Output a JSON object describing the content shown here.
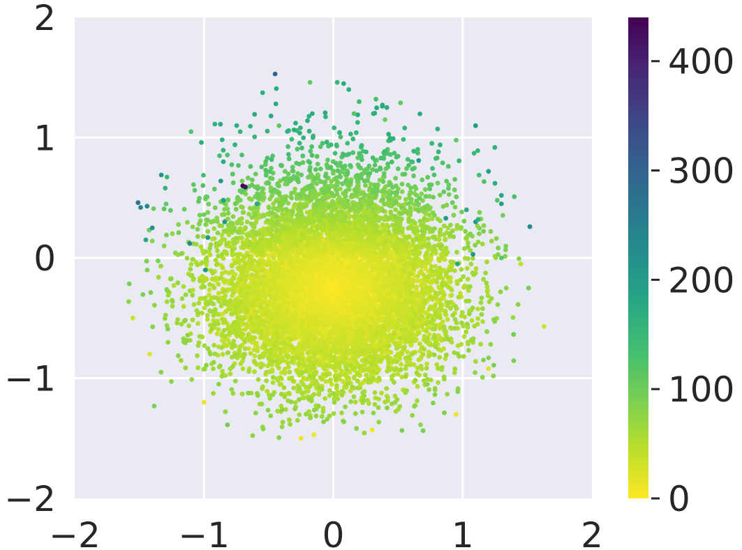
{
  "chart_data": {
    "type": "scatter",
    "title": "",
    "xlabel": "",
    "ylabel": "",
    "xlim": [
      -2,
      2
    ],
    "ylim": [
      -2,
      2
    ],
    "xticks": [
      -2,
      -1,
      0,
      1,
      2
    ],
    "yticks": [
      -2,
      -1,
      0,
      1,
      2
    ],
    "xtick_labels": [
      "−2",
      "−1",
      "0",
      "1",
      "2"
    ],
    "ytick_labels": [
      "−2",
      "−1",
      "0",
      "1",
      "2"
    ],
    "grid": true,
    "background": "#eaeaf2",
    "grid_color": "#ffffff",
    "colormap": "viridis_r",
    "colorbar": {
      "min": 0,
      "max": 440,
      "ticks": [
        0,
        100,
        200,
        300,
        400
      ],
      "tick_labels": [
        "0",
        "100",
        "200",
        "300",
        "400"
      ]
    },
    "cluster": {
      "description": "dense cloud of several thousand points, mostly low values",
      "center": [
        0.0,
        -0.25
      ],
      "spread_x": 0.45,
      "spread_y": 0.38,
      "point_count": 9000
    },
    "points": [
      {
        "x": -0.45,
        "y": 1.53,
        "value": 300
      },
      {
        "x": 0.08,
        "y": 1.45,
        "value": 170
      },
      {
        "x": 0.12,
        "y": 1.4,
        "value": 160
      },
      {
        "x": 0.03,
        "y": 1.46,
        "value": 150
      },
      {
        "x": -0.18,
        "y": 1.46,
        "value": 110
      },
      {
        "x": 0.2,
        "y": 1.3,
        "value": 140
      },
      {
        "x": 0.33,
        "y": 1.32,
        "value": 130
      },
      {
        "x": 0.52,
        "y": 1.29,
        "value": 110
      },
      {
        "x": 0.31,
        "y": 1.2,
        "value": 160
      },
      {
        "x": 1.1,
        "y": 1.1,
        "value": 200
      },
      {
        "x": -1.1,
        "y": 1.05,
        "value": 120
      },
      {
        "x": -0.72,
        "y": 1.05,
        "value": 150
      },
      {
        "x": -1.02,
        "y": 0.96,
        "value": 170
      },
      {
        "x": 0.95,
        "y": 0.98,
        "value": 110
      },
      {
        "x": -0.85,
        "y": 0.8,
        "value": 170
      },
      {
        "x": -1.33,
        "y": 0.69,
        "value": 210
      },
      {
        "x": -1.3,
        "y": 0.58,
        "value": 160
      },
      {
        "x": -0.7,
        "y": 0.6,
        "value": 440
      },
      {
        "x": -0.68,
        "y": 0.59,
        "value": 420
      },
      {
        "x": -0.87,
        "y": 0.64,
        "value": 210
      },
      {
        "x": -1.51,
        "y": 0.46,
        "value": 270
      },
      {
        "x": -1.49,
        "y": 0.42,
        "value": 240
      },
      {
        "x": -1.44,
        "y": 0.43,
        "value": 230
      },
      {
        "x": -0.85,
        "y": 0.48,
        "value": 190
      },
      {
        "x": 1.2,
        "y": 0.72,
        "value": 190
      },
      {
        "x": 1.25,
        "y": 0.62,
        "value": 170
      },
      {
        "x": 1.3,
        "y": 0.52,
        "value": 180
      },
      {
        "x": 1.3,
        "y": 0.45,
        "value": 190
      },
      {
        "x": 1.1,
        "y": 0.3,
        "value": 200
      },
      {
        "x": 1.52,
        "y": 0.26,
        "value": 230
      },
      {
        "x": 0.66,
        "y": 0.81,
        "value": 200
      },
      {
        "x": 0.87,
        "y": 0.33,
        "value": 200
      },
      {
        "x": 1.03,
        "y": 0.4,
        "value": 170
      },
      {
        "x": 1.12,
        "y": 0.32,
        "value": 160
      },
      {
        "x": -1.11,
        "y": 0.12,
        "value": 230
      },
      {
        "x": -1.4,
        "y": 0.25,
        "value": 220
      },
      {
        "x": -1.45,
        "y": 0.15,
        "value": 180
      },
      {
        "x": -0.84,
        "y": 0.3,
        "value": 200
      },
      {
        "x": -0.97,
        "y": 0.17,
        "value": 210
      },
      {
        "x": -0.59,
        "y": 0.45,
        "value": 180
      },
      {
        "x": -0.99,
        "y": -0.1,
        "value": 200
      },
      {
        "x": 0.96,
        "y": -0.05,
        "value": 180
      },
      {
        "x": 1.08,
        "y": 0.03,
        "value": 210
      },
      {
        "x": 1.3,
        "y": 0.0,
        "value": 120
      },
      {
        "x": 1.45,
        "y": -0.05,
        "value": 40
      },
      {
        "x": 1.63,
        "y": -0.57,
        "value": 30
      },
      {
        "x": 0.16,
        "y": 1.2,
        "value": 120
      },
      {
        "x": -0.42,
        "y": 1.1,
        "value": 110
      },
      {
        "x": 0.4,
        "y": 1.15,
        "value": 100
      },
      {
        "x": -1.55,
        "y": -0.5,
        "value": 30
      },
      {
        "x": -1.42,
        "y": -0.8,
        "value": 20
      },
      {
        "x": -0.25,
        "y": -1.5,
        "value": 10
      },
      {
        "x": -0.15,
        "y": -1.47,
        "value": 10
      },
      {
        "x": 0.3,
        "y": -1.43,
        "value": 10
      },
      {
        "x": 0.95,
        "y": -1.3,
        "value": 10
      },
      {
        "x": 1.2,
        "y": -0.92,
        "value": 20
      },
      {
        "x": -1.0,
        "y": -1.2,
        "value": 10
      }
    ]
  }
}
